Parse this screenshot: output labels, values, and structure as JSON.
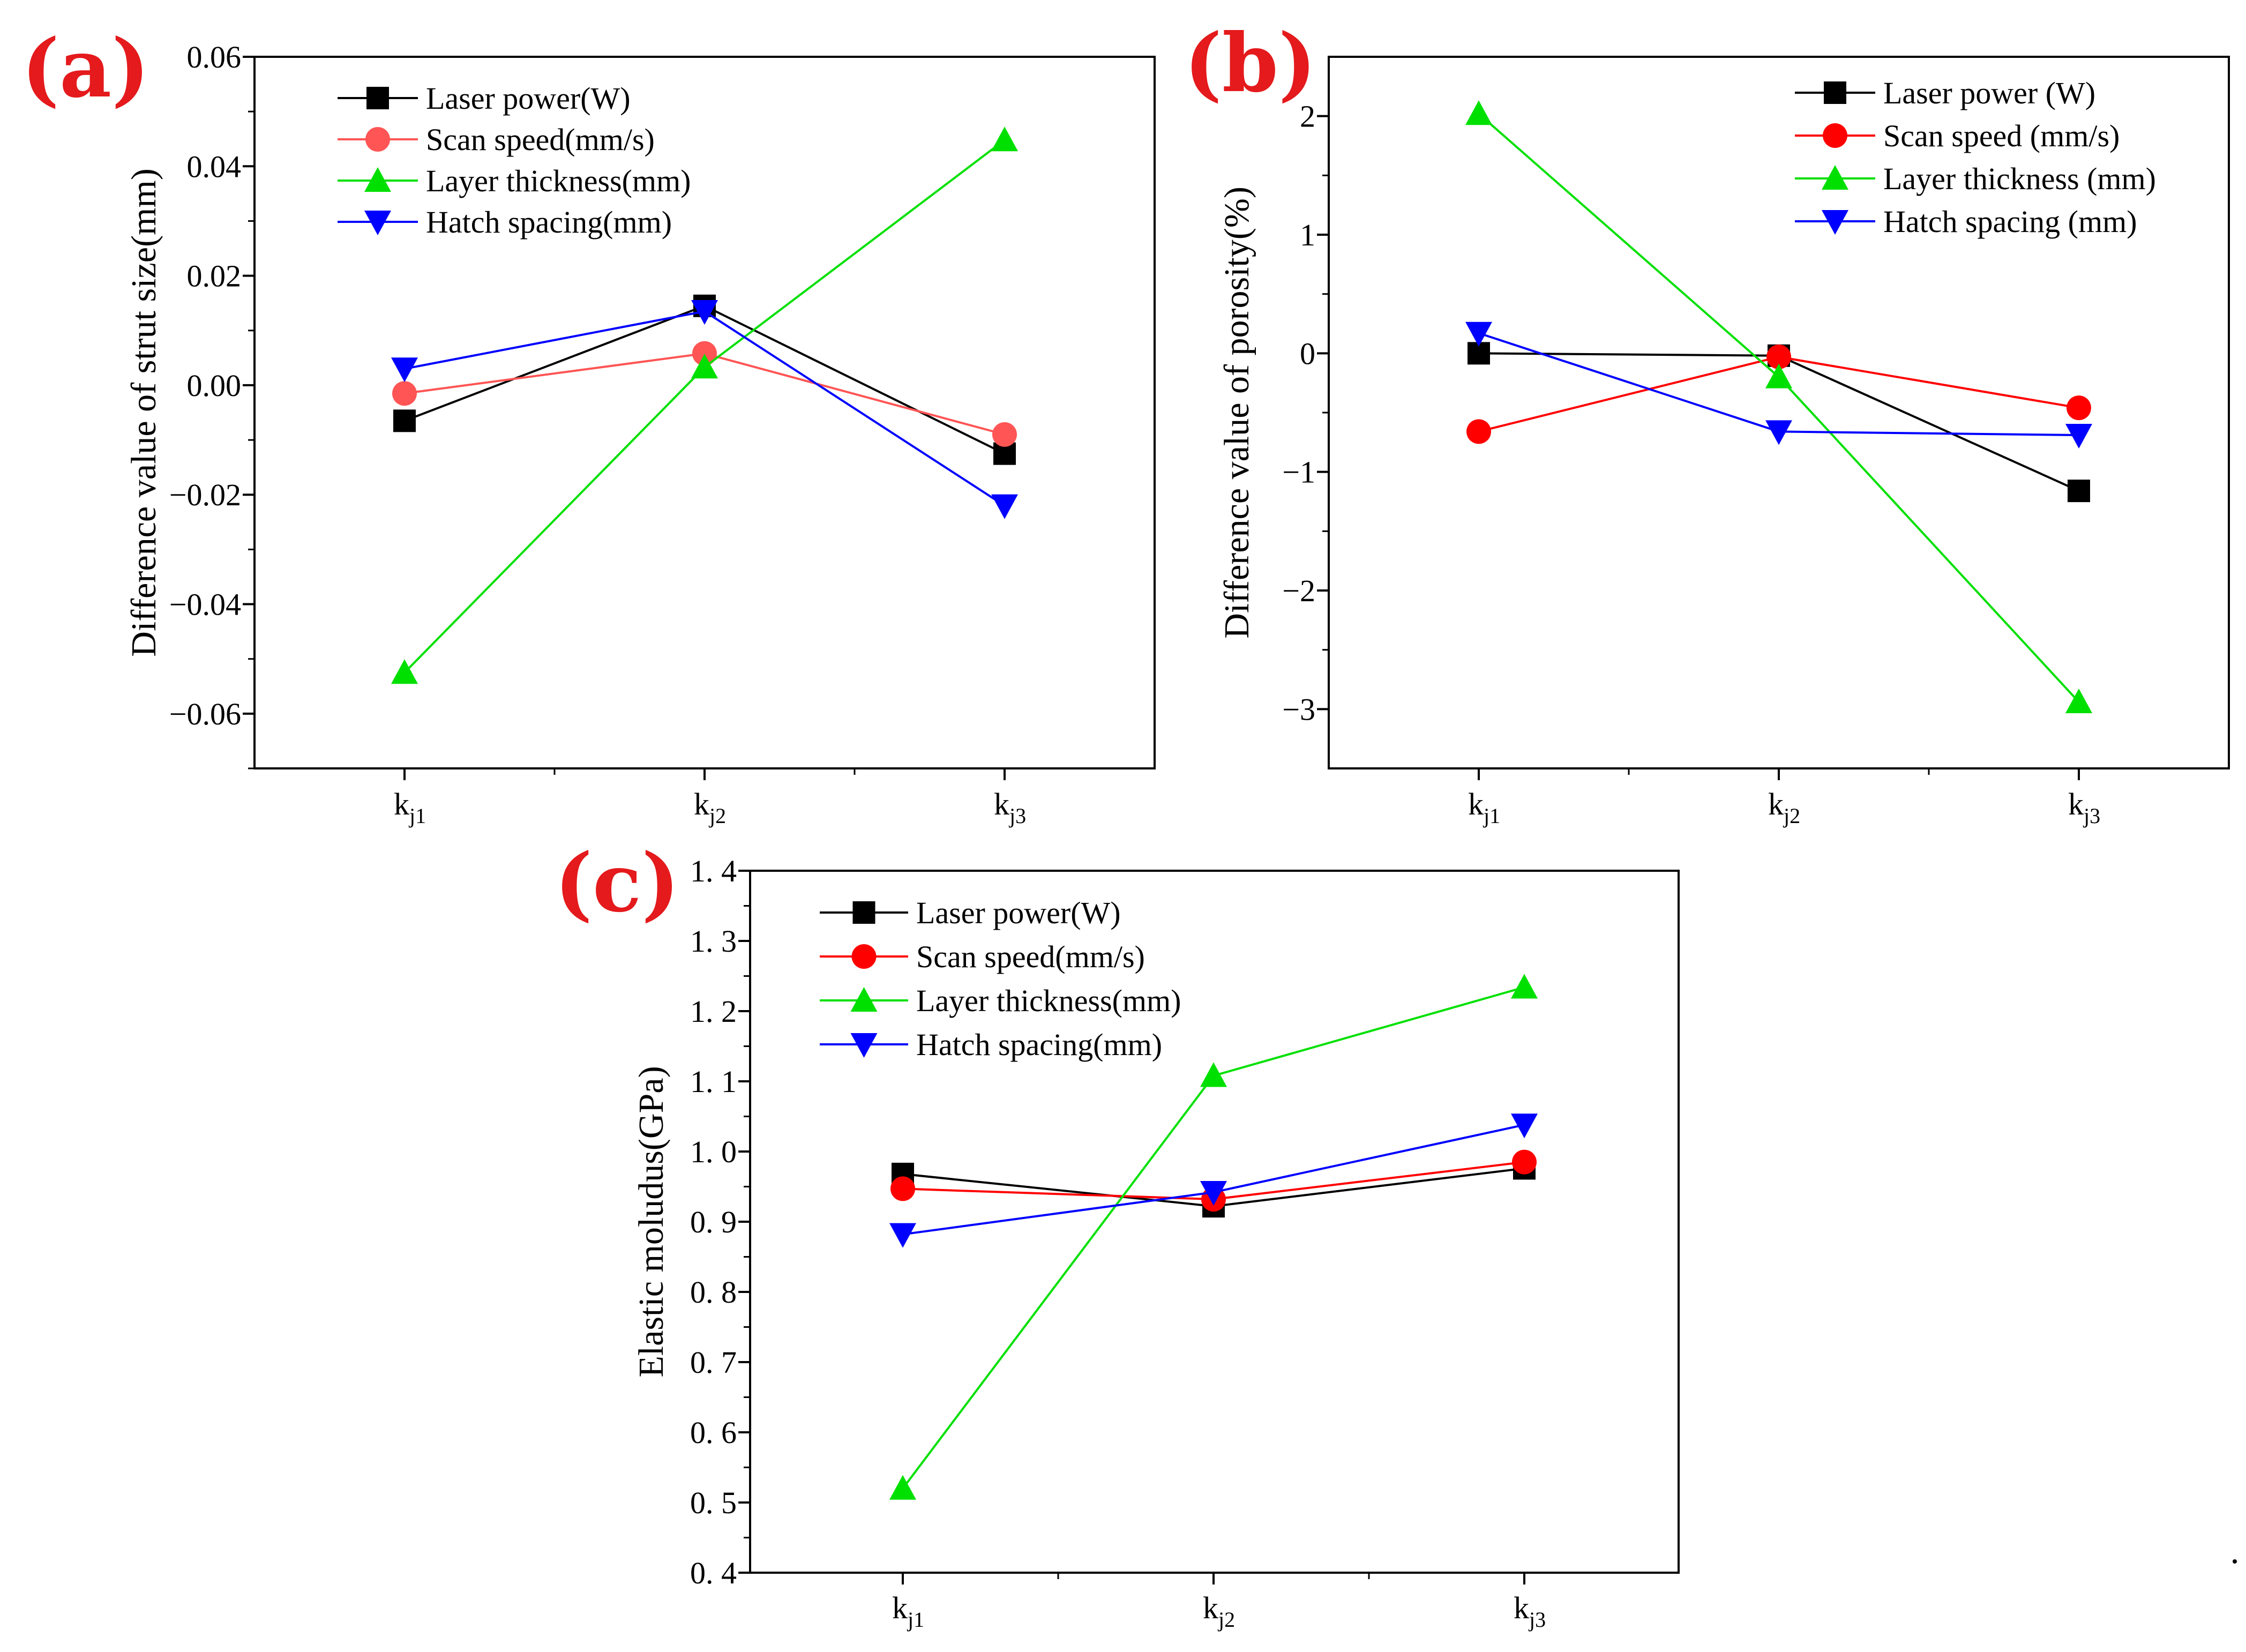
{
  "chart_data": [
    {
      "type": "line",
      "panel_label": "(a)",
      "title": "",
      "xlabel": "",
      "ylabel": "Difference value of strut size(mm)",
      "categories": [
        {
          "base": "k",
          "sub": "j1"
        },
        {
          "base": "k",
          "sub": "j2"
        },
        {
          "base": "k",
          "sub": "j3"
        }
      ],
      "ylim": [
        -0.07,
        0.06
      ],
      "yticks": [
        -0.06,
        -0.04,
        -0.02,
        0.0,
        0.02,
        0.04,
        0.06
      ],
      "ytick_labels": [
        "−0.06",
        "−0.04",
        "−0.02",
        "0.00",
        "0.02",
        "0.04",
        "0.06"
      ],
      "legend_position": "top-left",
      "series": [
        {
          "name": "Laser power(W)",
          "color": "#000000",
          "marker": "square",
          "values": [
            -0.0065,
            0.0145,
            -0.0125
          ]
        },
        {
          "name": "Scan speed(mm/s)",
          "color": "#ff5555",
          "marker": "circle",
          "values": [
            -0.0015,
            0.0058,
            -0.009
          ]
        },
        {
          "name": "Layer thickness(mm)",
          "color": "#00e000",
          "marker": "triangle-up",
          "values": [
            -0.0525,
            0.0033,
            0.0448
          ]
        },
        {
          "name": "Hatch spacing(mm)",
          "color": "#0000ff",
          "marker": "triangle-down",
          "values": [
            0.003,
            0.0135,
            -0.022
          ]
        }
      ]
    },
    {
      "type": "line",
      "panel_label": "(b)",
      "title": "",
      "xlabel": "",
      "ylabel": "Difference value of porosity(%)",
      "categories": [
        {
          "base": "k",
          "sub": "j1"
        },
        {
          "base": "k",
          "sub": "j2"
        },
        {
          "base": "k",
          "sub": "j3"
        }
      ],
      "ylim": [
        -3.5,
        2.5
      ],
      "yticks": [
        -3,
        -2,
        -1,
        0,
        1,
        2
      ],
      "ytick_labels": [
        "−3",
        "−2",
        "−1",
        "0",
        "1",
        "2"
      ],
      "legend_position": "top-right",
      "series": [
        {
          "name": "Laser power (W)",
          "color": "#000000",
          "marker": "square",
          "values": [
            0.0,
            -0.02,
            -1.16
          ]
        },
        {
          "name": "Scan speed (mm/s)",
          "color": "#ff0000",
          "marker": "circle",
          "values": [
            -0.66,
            -0.03,
            -0.46
          ]
        },
        {
          "name": "Layer thickness (mm)",
          "color": "#00e000",
          "marker": "triangle-up",
          "values": [
            2.02,
            -0.2,
            -2.94
          ]
        },
        {
          "name": "Hatch spacing (mm)",
          "color": "#0000ff",
          "marker": "triangle-down",
          "values": [
            0.17,
            -0.66,
            -0.69
          ]
        }
      ]
    },
    {
      "type": "line",
      "panel_label": "(c)",
      "title": "",
      "xlabel": "",
      "ylabel": "Elastic moludus(GPa)",
      "categories": [
        {
          "base": "k",
          "sub": "j1"
        },
        {
          "base": "k",
          "sub": "j2"
        },
        {
          "base": "k",
          "sub": "j3"
        }
      ],
      "ylim": [
        0.4,
        1.4
      ],
      "yticks": [
        0.4,
        0.5,
        0.6,
        0.7,
        0.8,
        0.9,
        1.0,
        1.1,
        1.2,
        1.3,
        1.4
      ],
      "ytick_labels": [
        "0. 4",
        "0. 5",
        "0. 6",
        "0. 7",
        "0. 8",
        "0. 9",
        "1. 0",
        "1. 1",
        "1. 2",
        "1. 3",
        "1. 4"
      ],
      "legend_position": "top-left",
      "series": [
        {
          "name": "Laser power(W)",
          "color": "#000000",
          "marker": "square",
          "values": [
            0.968,
            0.922,
            0.976
          ]
        },
        {
          "name": "Scan speed(mm/s)",
          "color": "#ff0000",
          "marker": "circle",
          "values": [
            0.947,
            0.932,
            0.985
          ]
        },
        {
          "name": "Layer thickness(mm)",
          "color": "#00e000",
          "marker": "triangle-up",
          "values": [
            0.52,
            1.108,
            1.234
          ]
        },
        {
          "name": "Hatch spacing(mm)",
          "color": "#0000ff",
          "marker": "triangle-down",
          "values": [
            0.882,
            0.942,
            1.038
          ]
        }
      ]
    }
  ]
}
